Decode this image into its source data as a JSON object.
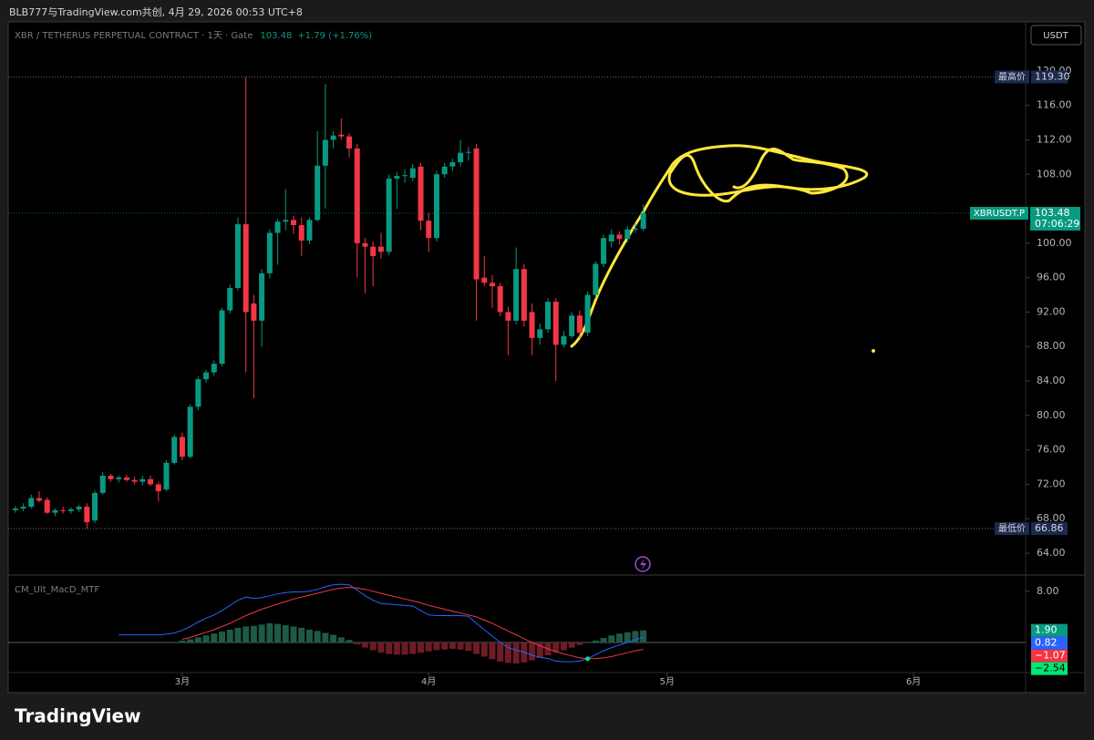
{
  "header": {
    "attribution": "BLB777与TradingView.com共创, 4月 29, 2026 00:53 UTC+8"
  },
  "footer": {
    "logo": "TradingView"
  },
  "chart_data": {
    "type": "candlestick",
    "title": "XBR / TETHERUS PERPETUAL CONTRACT · 1天 · Gate",
    "last_price": 103.48,
    "change_label": "+1.79 (+1.76%)",
    "currency": "USDT",
    "up_color": "#089981",
    "down_color": "#f23645",
    "xlim": [
      -0.9,
      127.1
    ],
    "xticks": [
      {
        "value": 21,
        "label": "3月"
      },
      {
        "value": 52,
        "label": "4月"
      },
      {
        "value": 82,
        "label": "5月"
      },
      {
        "value": 113,
        "label": "6月"
      }
    ],
    "ylim": [
      61.57,
      125.7
    ],
    "yticks": [
      {
        "value": 64,
        "label": "64.00"
      },
      {
        "value": 68,
        "label": "68.00"
      },
      {
        "value": 72,
        "label": "72.00"
      },
      {
        "value": 76,
        "label": "76.00"
      },
      {
        "value": 80,
        "label": "80.00"
      },
      {
        "value": 84,
        "label": "84.00"
      },
      {
        "value": 88,
        "label": "88.00"
      },
      {
        "value": 92,
        "label": "92.00"
      },
      {
        "value": 96,
        "label": "96.00"
      },
      {
        "value": 100,
        "label": "100.00"
      },
      {
        "value": 108,
        "label": "108.00"
      },
      {
        "value": 112,
        "label": "112.00"
      },
      {
        "value": 116,
        "label": "116.00"
      },
      {
        "value": 120,
        "label": "120.00"
      }
    ],
    "x": [
      0,
      1,
      2,
      3,
      4,
      5,
      6,
      7,
      8,
      9,
      10,
      11,
      12,
      13,
      14,
      15,
      16,
      17,
      18,
      19,
      20,
      21,
      22,
      23,
      24,
      25,
      26,
      27,
      28,
      29,
      30,
      31,
      32,
      33,
      34,
      35,
      36,
      37,
      38,
      39,
      40,
      41,
      42,
      43,
      44,
      45,
      46,
      47,
      48,
      49,
      50,
      51,
      52,
      53,
      54,
      55,
      56,
      57,
      58,
      59,
      60,
      61,
      62,
      63,
      64,
      65,
      66,
      67,
      68,
      69,
      70,
      71,
      72,
      73,
      74,
      75,
      76,
      77,
      78,
      79
    ],
    "open": [
      69.0,
      69.2,
      69.4,
      70.4,
      70.2,
      68.7,
      69.0,
      68.9,
      69.1,
      69.4,
      67.8,
      71.0,
      73.0,
      72.6,
      72.8,
      72.5,
      72.3,
      72.6,
      72.0,
      71.4,
      74.5,
      77.5,
      75.2,
      81.0,
      84.2,
      85.0,
      86.0,
      92.2,
      94.8,
      102.2,
      93.0,
      91.0,
      96.5,
      101.2,
      102.5,
      102.7,
      102.1,
      100.3,
      102.7,
      109.0,
      112.0,
      112.6,
      112.4,
      111.0,
      100.0,
      99.6,
      99.6,
      99.0,
      107.5,
      107.8,
      107.6,
      108.9,
      102.6,
      100.6,
      108.0,
      108.9,
      109.4,
      110.5,
      111.0,
      96.0,
      95.4,
      95.0,
      92.0,
      91.0,
      97.0,
      92.0,
      89.0,
      90.0,
      93.2,
      88.2,
      89.2,
      91.6,
      89.6,
      94.0,
      97.6,
      100.2,
      101.0,
      100.5,
      101.6,
      101.69
    ],
    "high": [
      69.5,
      69.8,
      70.8,
      71.2,
      70.5,
      69.2,
      69.4,
      69.3,
      69.6,
      69.8,
      71.3,
      73.4,
      73.2,
      73.0,
      73.1,
      72.9,
      73.0,
      73.0,
      72.3,
      74.8,
      77.8,
      78.0,
      81.3,
      84.5,
      85.3,
      86.4,
      92.5,
      95.2,
      103.0,
      119.3,
      94.0,
      97.0,
      101.6,
      102.8,
      106.3,
      103.2,
      103.0,
      103.0,
      113.0,
      118.5,
      113.0,
      114.5,
      112.8,
      111.5,
      100.6,
      100.2,
      101.2,
      108.0,
      108.3,
      108.6,
      109.2,
      109.3,
      103.5,
      108.4,
      109.3,
      109.8,
      112.0,
      111.2,
      111.5,
      98.5,
      96.3,
      95.4,
      92.6,
      99.5,
      97.6,
      93.0,
      90.7,
      93.6,
      93.6,
      89.8,
      92.0,
      92.2,
      94.4,
      97.9,
      101.0,
      101.6,
      101.4,
      102.0,
      102.3,
      104.5
    ],
    "low": [
      68.7,
      68.9,
      69.2,
      69.9,
      68.6,
      68.3,
      68.6,
      68.6,
      68.8,
      66.86,
      67.5,
      70.8,
      72.3,
      72.2,
      72.3,
      72.0,
      71.9,
      71.8,
      70.0,
      71.2,
      74.3,
      74.8,
      75.0,
      80.6,
      83.8,
      84.6,
      85.7,
      91.8,
      94.5,
      85.0,
      82.0,
      88.0,
      95.9,
      97.5,
      101.5,
      101.1,
      98.5,
      99.9,
      102.5,
      104.0,
      111.0,
      112.0,
      110.0,
      96.0,
      94.2,
      95.0,
      98.2,
      98.6,
      104.0,
      107.0,
      107.2,
      101.5,
      99.0,
      100.2,
      107.6,
      108.4,
      108.9,
      109.6,
      91.0,
      95.0,
      92.5,
      91.5,
      87.0,
      90.6,
      90.3,
      87.0,
      88.2,
      89.6,
      84.0,
      87.9,
      88.9,
      89.0,
      89.2,
      93.6,
      97.2,
      99.5,
      99.8,
      100.1,
      101.2,
      101.4
    ],
    "close": [
      69.2,
      69.4,
      70.4,
      70.1,
      68.7,
      69.0,
      68.9,
      69.1,
      69.4,
      67.6,
      71.0,
      73.0,
      72.6,
      72.8,
      72.5,
      72.3,
      72.6,
      72.0,
      71.2,
      74.5,
      77.5,
      75.2,
      81.0,
      84.2,
      85.0,
      86.0,
      92.2,
      94.8,
      102.2,
      92.0,
      91.0,
      96.5,
      101.2,
      102.5,
      102.7,
      102.1,
      100.3,
      102.7,
      109.0,
      112.0,
      112.5,
      112.4,
      111.0,
      100.0,
      99.6,
      98.5,
      99.0,
      107.5,
      107.8,
      107.9,
      108.7,
      102.6,
      100.6,
      108.0,
      108.9,
      109.4,
      110.5,
      110.6,
      95.8,
      95.4,
      95.0,
      92.0,
      91.0,
      97.0,
      91.0,
      89.0,
      90.0,
      93.2,
      88.2,
      89.2,
      91.6,
      89.6,
      94.0,
      97.6,
      100.6,
      101.0,
      100.5,
      101.6,
      101.69,
      103.48
    ],
    "price_lines": [
      {
        "name": "最高价",
        "value": 119.3,
        "value_label": "119.30"
      },
      {
        "name": "最低价",
        "value": 66.86,
        "value_label": "66.86"
      }
    ],
    "last_label": {
      "name": "XBRUSDT.P",
      "countdown": "07:06:29"
    },
    "indicator": {
      "name": "CM_Ult_MacD_MTF",
      "ylim": [
        -4.7,
        10.4
      ],
      "yticks": [
        {
          "value": 8,
          "label": "8.00"
        }
      ],
      "histogram": {
        "up_color": "#1e5a45",
        "down_color": "#6e1b26",
        "last_label": "1.90",
        "label_color": "#089981",
        "values": [
          null,
          null,
          null,
          null,
          null,
          null,
          null,
          null,
          null,
          null,
          null,
          null,
          null,
          null,
          null,
          null,
          null,
          null,
          null,
          null,
          null,
          0.3,
          0.5,
          0.8,
          1.1,
          1.4,
          1.7,
          2.0,
          2.3,
          2.5,
          2.6,
          2.8,
          3.0,
          2.9,
          2.7,
          2.5,
          2.3,
          2.0,
          1.8,
          1.5,
          1.2,
          0.8,
          0.4,
          -0.3,
          -0.8,
          -1.2,
          -1.6,
          -1.8,
          -1.9,
          -1.9,
          -1.8,
          -1.6,
          -1.4,
          -1.2,
          -1.1,
          -1.0,
          -1.1,
          -1.3,
          -1.8,
          -2.2,
          -2.6,
          -3.0,
          -3.2,
          -3.3,
          -3.1,
          -2.8,
          -2.4,
          -2.0,
          -1.6,
          -1.2,
          -0.8,
          -0.4,
          -0.1,
          0.3,
          0.7,
          1.1,
          1.4,
          1.6,
          1.8,
          1.9
        ]
      },
      "macd": {
        "color": "#2962ff",
        "last_label": "0.82",
        "values": [
          null,
          null,
          null,
          null,
          null,
          null,
          null,
          null,
          null,
          null,
          null,
          null,
          null,
          1.2,
          1.2,
          1.2,
          1.2,
          1.2,
          1.2,
          1.3,
          1.5,
          1.9,
          2.5,
          3.2,
          3.8,
          4.3,
          5.0,
          5.8,
          6.6,
          7.1,
          6.9,
          7.0,
          7.3,
          7.6,
          7.8,
          7.9,
          7.9,
          8.0,
          8.3,
          8.7,
          9.0,
          9.1,
          9.0,
          8.2,
          7.3,
          6.6,
          6.1,
          6.0,
          5.9,
          5.8,
          5.7,
          5.0,
          4.3,
          4.2,
          4.2,
          4.2,
          4.2,
          4.1,
          3.0,
          2.0,
          1.0,
          0.0,
          -0.8,
          -1.2,
          -1.5,
          -2.0,
          -2.3,
          -2.5,
          -2.9,
          -3.0,
          -3.0,
          -2.9,
          -2.5,
          -1.9,
          -1.3,
          -0.8,
          -0.4,
          0.0,
          0.4,
          0.82
        ]
      },
      "signal": {
        "color": "#f23645",
        "last_label": "−1.07",
        "values": [
          null,
          null,
          null,
          null,
          null,
          null,
          null,
          null,
          null,
          null,
          null,
          null,
          null,
          null,
          null,
          null,
          null,
          null,
          null,
          null,
          null,
          0.5,
          0.8,
          1.2,
          1.6,
          2.0,
          2.5,
          3.0,
          3.6,
          4.2,
          4.7,
          5.2,
          5.6,
          6.0,
          6.4,
          6.8,
          7.1,
          7.4,
          7.7,
          8.0,
          8.3,
          8.5,
          8.6,
          8.5,
          8.3,
          8.0,
          7.7,
          7.4,
          7.1,
          6.8,
          6.5,
          6.2,
          5.8,
          5.5,
          5.2,
          4.9,
          4.6,
          4.3,
          4.0,
          3.5,
          3.0,
          2.4,
          1.8,
          1.2,
          0.6,
          0.0,
          -0.5,
          -1.0,
          -1.4,
          -1.8,
          -2.1,
          -2.4,
          -2.5,
          -2.5,
          -2.4,
          -2.2,
          -1.9,
          -1.6,
          -1.3,
          -1.07
        ]
      },
      "cross": {
        "x": 72,
        "value": -2.54,
        "value_label": "−2.54",
        "color": "#00e676"
      }
    }
  }
}
